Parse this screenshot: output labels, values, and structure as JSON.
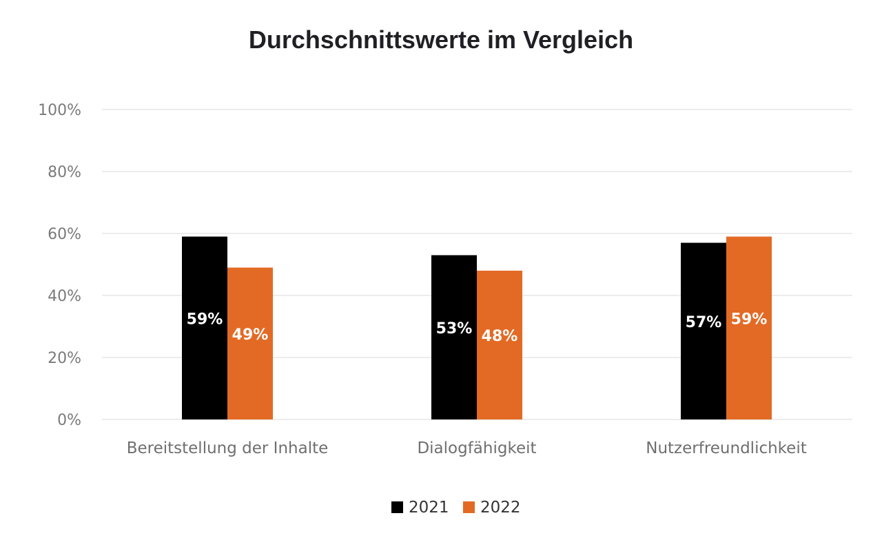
{
  "chart_data": {
    "type": "bar",
    "title": "Durchschnittswerte im Vergleich",
    "xlabel": "",
    "ylabel": "",
    "categories": [
      "Bereitstellung der Inhalte",
      "Dialogfähigkeit",
      "Nutzerfreundlichkeit"
    ],
    "series": [
      {
        "name": "2021",
        "color": "#000000",
        "values": [
          59,
          53,
          57
        ],
        "labels": [
          "59%",
          "53%",
          "57%"
        ]
      },
      {
        "name": "2022",
        "color": "#e36a25",
        "values": [
          49,
          48,
          59
        ],
        "labels": [
          "49%",
          "48%",
          "59%"
        ]
      }
    ],
    "ylim": [
      0,
      100
    ],
    "yticks": [
      0,
      20,
      40,
      60,
      80,
      100
    ],
    "ytick_labels": [
      "0%",
      "20%",
      "40%",
      "60%",
      "80%",
      "100%"
    ],
    "grid": true,
    "legend_position": "bottom"
  }
}
